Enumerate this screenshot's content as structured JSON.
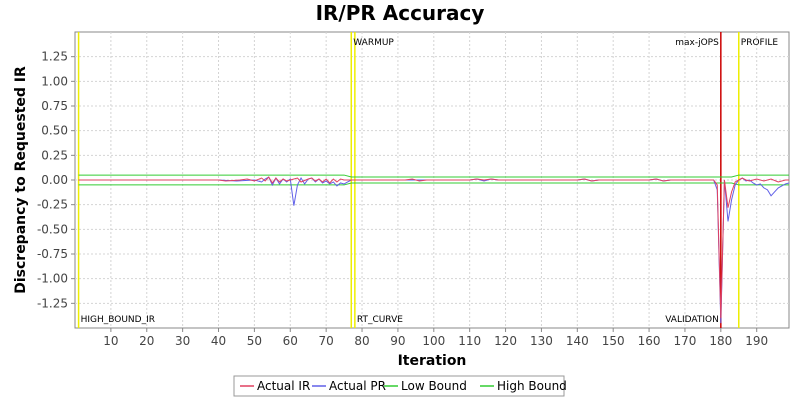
{
  "chart_data": {
    "type": "line",
    "title": "IR/PR Accuracy",
    "xlabel": "Iteration",
    "ylabel": "Discrepancy to Requested IR",
    "xlim": [
      0,
      199
    ],
    "ylim": [
      -1.5,
      1.5
    ],
    "x_ticks": [
      10,
      20,
      30,
      40,
      50,
      60,
      70,
      80,
      90,
      100,
      110,
      120,
      130,
      140,
      150,
      160,
      170,
      180,
      190
    ],
    "y_ticks": [
      -1.25,
      -1.0,
      -0.75,
      -0.5,
      -0.25,
      0.0,
      0.25,
      0.5,
      0.75,
      1.0,
      1.25
    ],
    "y_tick_labels": [
      "-1.25",
      "-1.00",
      "-0.75",
      "-0.50",
      "-0.25",
      "0.00",
      "0.25",
      "0.50",
      "0.75",
      "1.00",
      "1.25"
    ],
    "grid": true,
    "legend": "bottom",
    "series": [
      {
        "name": "Actual IR",
        "color": "#e04060",
        "points": [
          [
            1,
            0
          ],
          [
            10,
            0
          ],
          [
            20,
            0
          ],
          [
            30,
            0
          ],
          [
            40,
            0
          ],
          [
            42,
            -0.01
          ],
          [
            46,
            0
          ],
          [
            48,
            0.01
          ],
          [
            50,
            -0.01
          ],
          [
            52,
            0.02
          ],
          [
            53,
            -0.01
          ],
          [
            54,
            0.03
          ],
          [
            55,
            -0.03
          ],
          [
            56,
            0.02
          ],
          [
            57,
            -0.02
          ],
          [
            58,
            0.01
          ],
          [
            59,
            -0.01
          ],
          [
            60,
            0
          ],
          [
            62,
            0.02
          ],
          [
            63,
            -0.02
          ],
          [
            65,
            0.01
          ],
          [
            66,
            0.02
          ],
          [
            67,
            -0.01
          ],
          [
            68,
            0.01
          ],
          [
            69,
            -0.02
          ],
          [
            70,
            0.01
          ],
          [
            71,
            -0.03
          ],
          [
            72,
            0.01
          ],
          [
            73,
            -0.02
          ],
          [
            74,
            0.01
          ],
          [
            75,
            0
          ],
          [
            77,
            0
          ],
          [
            80,
            0
          ],
          [
            85,
            0
          ],
          [
            90,
            0
          ],
          [
            92,
            0
          ],
          [
            94,
            0.01
          ],
          [
            96,
            -0.01
          ],
          [
            98,
            0
          ],
          [
            100,
            0
          ],
          [
            110,
            0
          ],
          [
            112,
            0.01
          ],
          [
            114,
            0
          ],
          [
            116,
            0.01
          ],
          [
            118,
            0
          ],
          [
            120,
            0
          ],
          [
            130,
            0
          ],
          [
            140,
            0
          ],
          [
            142,
            0.01
          ],
          [
            144,
            -0.01
          ],
          [
            146,
            0
          ],
          [
            150,
            0
          ],
          [
            155,
            0
          ],
          [
            160,
            0
          ],
          [
            162,
            0.01
          ],
          [
            164,
            -0.01
          ],
          [
            166,
            0
          ],
          [
            170,
            0
          ],
          [
            175,
            0
          ],
          [
            178,
            0
          ],
          [
            179,
            -0.05
          ],
          [
            180,
            -1.4
          ],
          [
            181,
            0
          ],
          [
            182,
            -0.28
          ],
          [
            183,
            -0.12
          ],
          [
            184,
            -0.02
          ],
          [
            185,
            0
          ],
          [
            186,
            0.02
          ],
          [
            187,
            0
          ],
          [
            188,
            -0.01
          ],
          [
            190,
            0.01
          ],
          [
            192,
            -0.01
          ],
          [
            194,
            0.01
          ],
          [
            196,
            -0.02
          ],
          [
            198,
            0
          ],
          [
            199,
            0
          ]
        ]
      },
      {
        "name": "Actual PR",
        "color": "#6060e8",
        "points": [
          [
            1,
            0
          ],
          [
            10,
            0
          ],
          [
            20,
            0
          ],
          [
            30,
            0
          ],
          [
            40,
            0
          ],
          [
            45,
            -0.01
          ],
          [
            50,
            0
          ],
          [
            52,
            -0.02
          ],
          [
            53,
            0.01
          ],
          [
            54,
            0.03
          ],
          [
            55,
            -0.05
          ],
          [
            56,
            0.02
          ],
          [
            57,
            -0.04
          ],
          [
            58,
            0.01
          ],
          [
            59,
            -0.02
          ],
          [
            60,
            0.01
          ],
          [
            61,
            -0.26
          ],
          [
            62,
            -0.05
          ],
          [
            63,
            0.02
          ],
          [
            64,
            -0.04
          ],
          [
            65,
            0.01
          ],
          [
            66,
            0.02
          ],
          [
            67,
            -0.02
          ],
          [
            68,
            0.01
          ],
          [
            69,
            -0.03
          ],
          [
            70,
            -0.01
          ],
          [
            71,
            -0.04
          ],
          [
            72,
            -0.02
          ],
          [
            73,
            -0.06
          ],
          [
            74,
            -0.03
          ],
          [
            75,
            -0.04
          ],
          [
            76,
            -0.02
          ],
          [
            77,
            0
          ],
          [
            80,
            0
          ],
          [
            90,
            0
          ],
          [
            95,
            0
          ],
          [
            100,
            0
          ],
          [
            110,
            0
          ],
          [
            112,
            0.01
          ],
          [
            114,
            -0.01
          ],
          [
            116,
            0.01
          ],
          [
            118,
            0
          ],
          [
            120,
            0
          ],
          [
            130,
            0
          ],
          [
            140,
            0
          ],
          [
            142,
            0.01
          ],
          [
            144,
            -0.01
          ],
          [
            146,
            0
          ],
          [
            150,
            0
          ],
          [
            160,
            0
          ],
          [
            162,
            0.01
          ],
          [
            164,
            -0.01
          ],
          [
            166,
            0
          ],
          [
            170,
            0
          ],
          [
            175,
            0
          ],
          [
            178,
            0
          ],
          [
            179,
            -0.1
          ],
          [
            180,
            -1.45
          ],
          [
            181,
            0
          ],
          [
            182,
            -0.42
          ],
          [
            183,
            -0.2
          ],
          [
            184,
            -0.05
          ],
          [
            185,
            0
          ],
          [
            186,
            0.02
          ],
          [
            187,
            -0.01
          ],
          [
            188,
            0
          ],
          [
            189,
            -0.03
          ],
          [
            190,
            -0.05
          ],
          [
            191,
            -0.04
          ],
          [
            192,
            -0.08
          ],
          [
            193,
            -0.1
          ],
          [
            194,
            -0.16
          ],
          [
            195,
            -0.12
          ],
          [
            196,
            -0.08
          ],
          [
            197,
            -0.06
          ],
          [
            198,
            -0.04
          ],
          [
            199,
            -0.03
          ]
        ]
      },
      {
        "name": "Low Bound",
        "color": "#33cc33",
        "points": [
          [
            1,
            -0.05
          ],
          [
            75,
            -0.05
          ],
          [
            77,
            -0.03
          ],
          [
            80,
            -0.03
          ],
          [
            183,
            -0.03
          ],
          [
            185,
            -0.05
          ],
          [
            199,
            -0.05
          ]
        ]
      },
      {
        "name": "High Bound",
        "color": "#33cc33",
        "points": [
          [
            1,
            0.05
          ],
          [
            75,
            0.05
          ],
          [
            77,
            0.03
          ],
          [
            80,
            0.03
          ],
          [
            183,
            0.03
          ],
          [
            185,
            0.05
          ],
          [
            199,
            0.05
          ]
        ]
      }
    ],
    "markers": [
      {
        "x": 1,
        "label": "HIGH_BOUND_IR",
        "color": "#eeee00",
        "label_pos": "bottom"
      },
      {
        "x": 77,
        "label": "WARMUP",
        "color": "#eeee00",
        "label_pos": "top"
      },
      {
        "x": 78,
        "label": "RT_CURVE",
        "color": "#eeee00",
        "label_pos": "bottom"
      },
      {
        "x": 180,
        "label": "max-jOPS",
        "color": "#cc0000",
        "label_pos": "top-left"
      },
      {
        "x": 180,
        "label": "VALIDATION",
        "color": "#cc0000",
        "label_pos": "bottom-left"
      },
      {
        "x": 185,
        "label": "PROFILE",
        "color": "#eeee00",
        "label_pos": "top"
      }
    ]
  }
}
